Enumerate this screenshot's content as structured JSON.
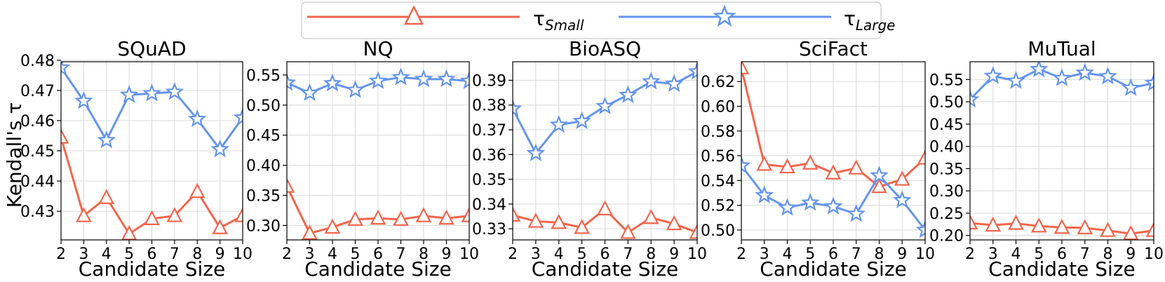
{
  "legend": {
    "small_base": "τ",
    "small_sub": "Small",
    "large_base": "τ",
    "large_sub": "Large"
  },
  "colors": {
    "small": "#f4654c",
    "large": "#6495ed"
  },
  "y_label": "Kendall's τ",
  "x_label": "Candidate Size",
  "chart_data": [
    {
      "type": "line",
      "title": "SQuAD",
      "xlabel": "Candidate Size",
      "ylabel": "Kendall's τ",
      "x": [
        2,
        3,
        4,
        5,
        6,
        7,
        8,
        9,
        10
      ],
      "xlim": [
        2,
        10
      ],
      "ylim": [
        0.4205,
        0.4795
      ],
      "yticks": [
        0.43,
        0.44,
        0.45,
        0.46,
        0.47,
        0.48
      ],
      "ytick_labels": [
        "0.43",
        "0.44",
        "0.45",
        "0.46",
        "0.47",
        "0.48"
      ],
      "series": [
        {
          "name": "τSmall",
          "values": [
            0.4545,
            0.4285,
            0.4345,
            0.4225,
            0.4275,
            0.4285,
            0.4365,
            0.4245,
            0.4285
          ]
        },
        {
          "name": "τLarge",
          "values": [
            0.4775,
            0.4665,
            0.4535,
            0.4685,
            0.469,
            0.4695,
            0.4605,
            0.4505,
            0.461
          ]
        }
      ]
    },
    {
      "type": "line",
      "title": "NQ",
      "xlabel": "Candidate Size",
      "ylabel": "",
      "x": [
        2,
        3,
        4,
        5,
        6,
        7,
        8,
        9,
        10
      ],
      "xlim": [
        2,
        10
      ],
      "ylim": [
        0.276,
        0.572
      ],
      "yticks": [
        0.3,
        0.35,
        0.4,
        0.45,
        0.5,
        0.55
      ],
      "ytick_labels": [
        "0.30",
        "0.35",
        "0.40",
        "0.45",
        "0.50",
        "0.55"
      ],
      "series": [
        {
          "name": "τSmall",
          "values": [
            0.365,
            0.287,
            0.297,
            0.31,
            0.312,
            0.31,
            0.316,
            0.312,
            0.316
          ]
        },
        {
          "name": "τLarge",
          "values": [
            0.537,
            0.52,
            0.536,
            0.525,
            0.54,
            0.546,
            0.543,
            0.543,
            0.54
          ]
        }
      ]
    },
    {
      "type": "line",
      "title": "BioASQ",
      "xlabel": "Candidate Size",
      "ylabel": "",
      "x": [
        2,
        3,
        4,
        5,
        6,
        7,
        8,
        9,
        10
      ],
      "xlim": [
        2,
        10
      ],
      "ylim": [
        0.3255,
        0.3975
      ],
      "yticks": [
        0.33,
        0.34,
        0.35,
        0.36,
        0.37,
        0.38,
        0.39
      ],
      "ytick_labels": [
        "0.33",
        "0.34",
        "0.35",
        "0.36",
        "0.37",
        "0.38",
        "0.39"
      ],
      "series": [
        {
          "name": "τSmall",
          "values": [
            0.3355,
            0.333,
            0.3325,
            0.3305,
            0.338,
            0.3285,
            0.3345,
            0.332,
            0.3285
          ]
        },
        {
          "name": "τLarge",
          "values": [
            0.3785,
            0.3605,
            0.372,
            0.3735,
            0.3795,
            0.384,
            0.3895,
            0.3885,
            0.3935
          ]
        }
      ]
    },
    {
      "type": "line",
      "title": "SciFact",
      "xlabel": "Candidate Size",
      "ylabel": "",
      "x": [
        2,
        3,
        4,
        5,
        6,
        7,
        8,
        9,
        10
      ],
      "xlim": [
        2,
        10
      ],
      "ylim": [
        0.492,
        0.636
      ],
      "yticks": [
        0.5,
        0.52,
        0.54,
        0.56,
        0.58,
        0.6,
        0.62
      ],
      "ytick_labels": [
        "0.50",
        "0.52",
        "0.54",
        "0.56",
        "0.58",
        "0.60",
        "0.62"
      ],
      "series": [
        {
          "name": "τSmall",
          "values": [
            0.631,
            0.553,
            0.551,
            0.554,
            0.546,
            0.55,
            0.535,
            0.541,
            0.558
          ]
        },
        {
          "name": "τLarge",
          "values": [
            0.552,
            0.528,
            0.518,
            0.522,
            0.519,
            0.513,
            0.544,
            0.524,
            0.5
          ]
        }
      ]
    },
    {
      "type": "line",
      "title": "MuTual",
      "xlabel": "Candidate Size",
      "ylabel": "",
      "x": [
        2,
        3,
        4,
        5,
        6,
        7,
        8,
        9,
        10
      ],
      "xlim": [
        2,
        10
      ],
      "ylim": [
        0.19,
        0.59
      ],
      "yticks": [
        0.2,
        0.25,
        0.3,
        0.35,
        0.4,
        0.45,
        0.5,
        0.55
      ],
      "ytick_labels": [
        "0.20",
        "0.25",
        "0.30",
        "0.35",
        "0.40",
        "0.45",
        "0.50",
        "0.55"
      ],
      "series": [
        {
          "name": "τSmall",
          "values": [
            0.228,
            0.223,
            0.227,
            0.221,
            0.218,
            0.217,
            0.211,
            0.204,
            0.211
          ]
        },
        {
          "name": "τLarge",
          "values": [
            0.505,
            0.558,
            0.547,
            0.573,
            0.553,
            0.565,
            0.557,
            0.531,
            0.542
          ]
        }
      ]
    }
  ]
}
